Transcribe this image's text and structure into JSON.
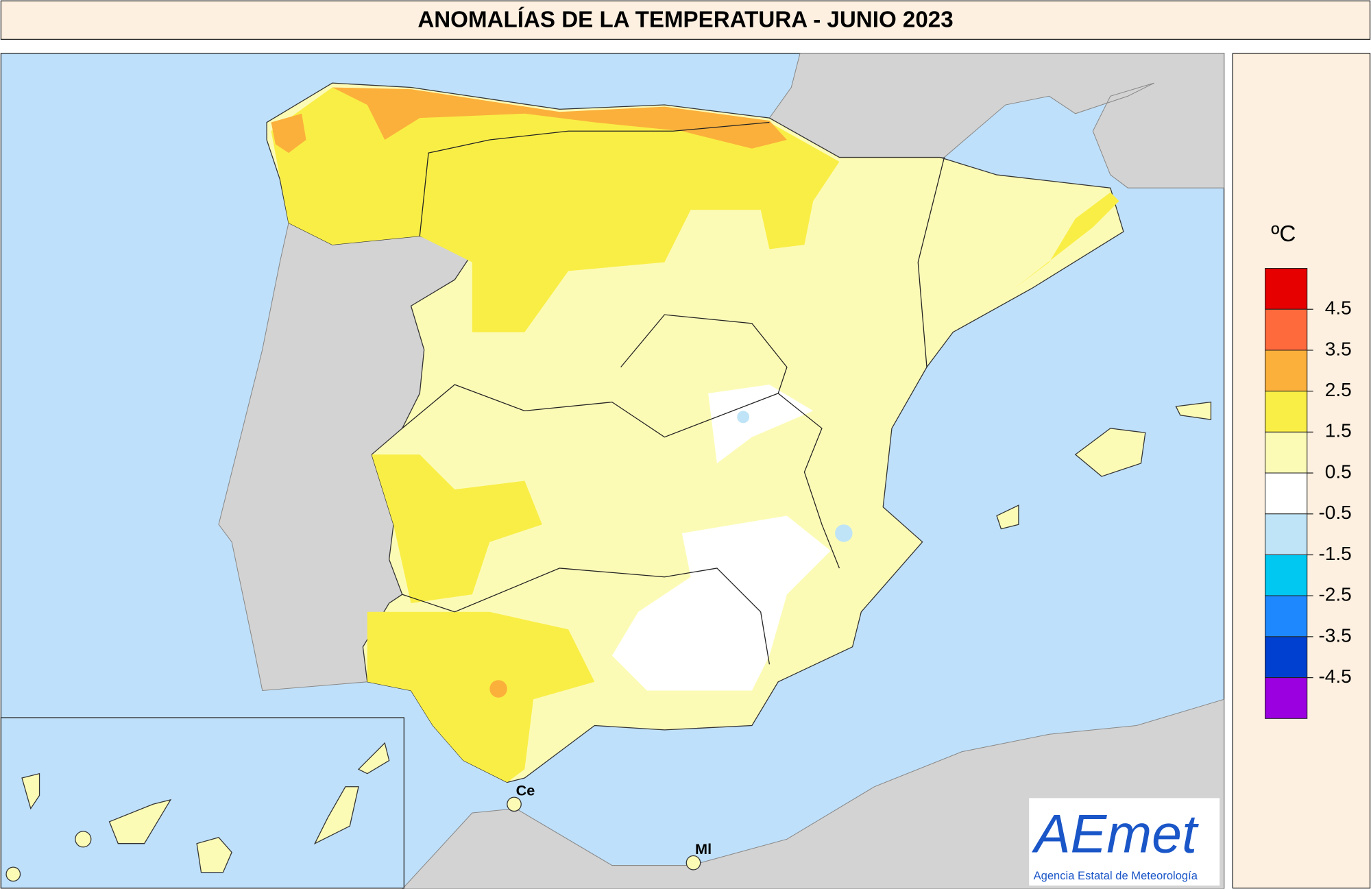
{
  "title": "ANOMALÍAS DE LA TEMPERATURA - JUNIO 2023",
  "legend": {
    "unit": "ºC",
    "ticks": [
      4.5,
      3.5,
      2.5,
      1.5,
      0.5,
      -0.5,
      -1.5,
      -2.5,
      -3.5,
      -4.5
    ],
    "colors": [
      "#e60000",
      "#ff6a3d",
      "#fbb03b",
      "#f9ee46",
      "#fcfbb6",
      "#ffffff",
      "#bfe4f7",
      "#00c8f0",
      "#1e88ff",
      "#0040d0",
      "#9b00e0"
    ]
  },
  "places": [
    {
      "label": "Ce"
    },
    {
      "label": "Ml"
    }
  ],
  "logo": {
    "name": "AEmet",
    "subtitle": "Agencia Estatal de Meteorología"
  }
}
